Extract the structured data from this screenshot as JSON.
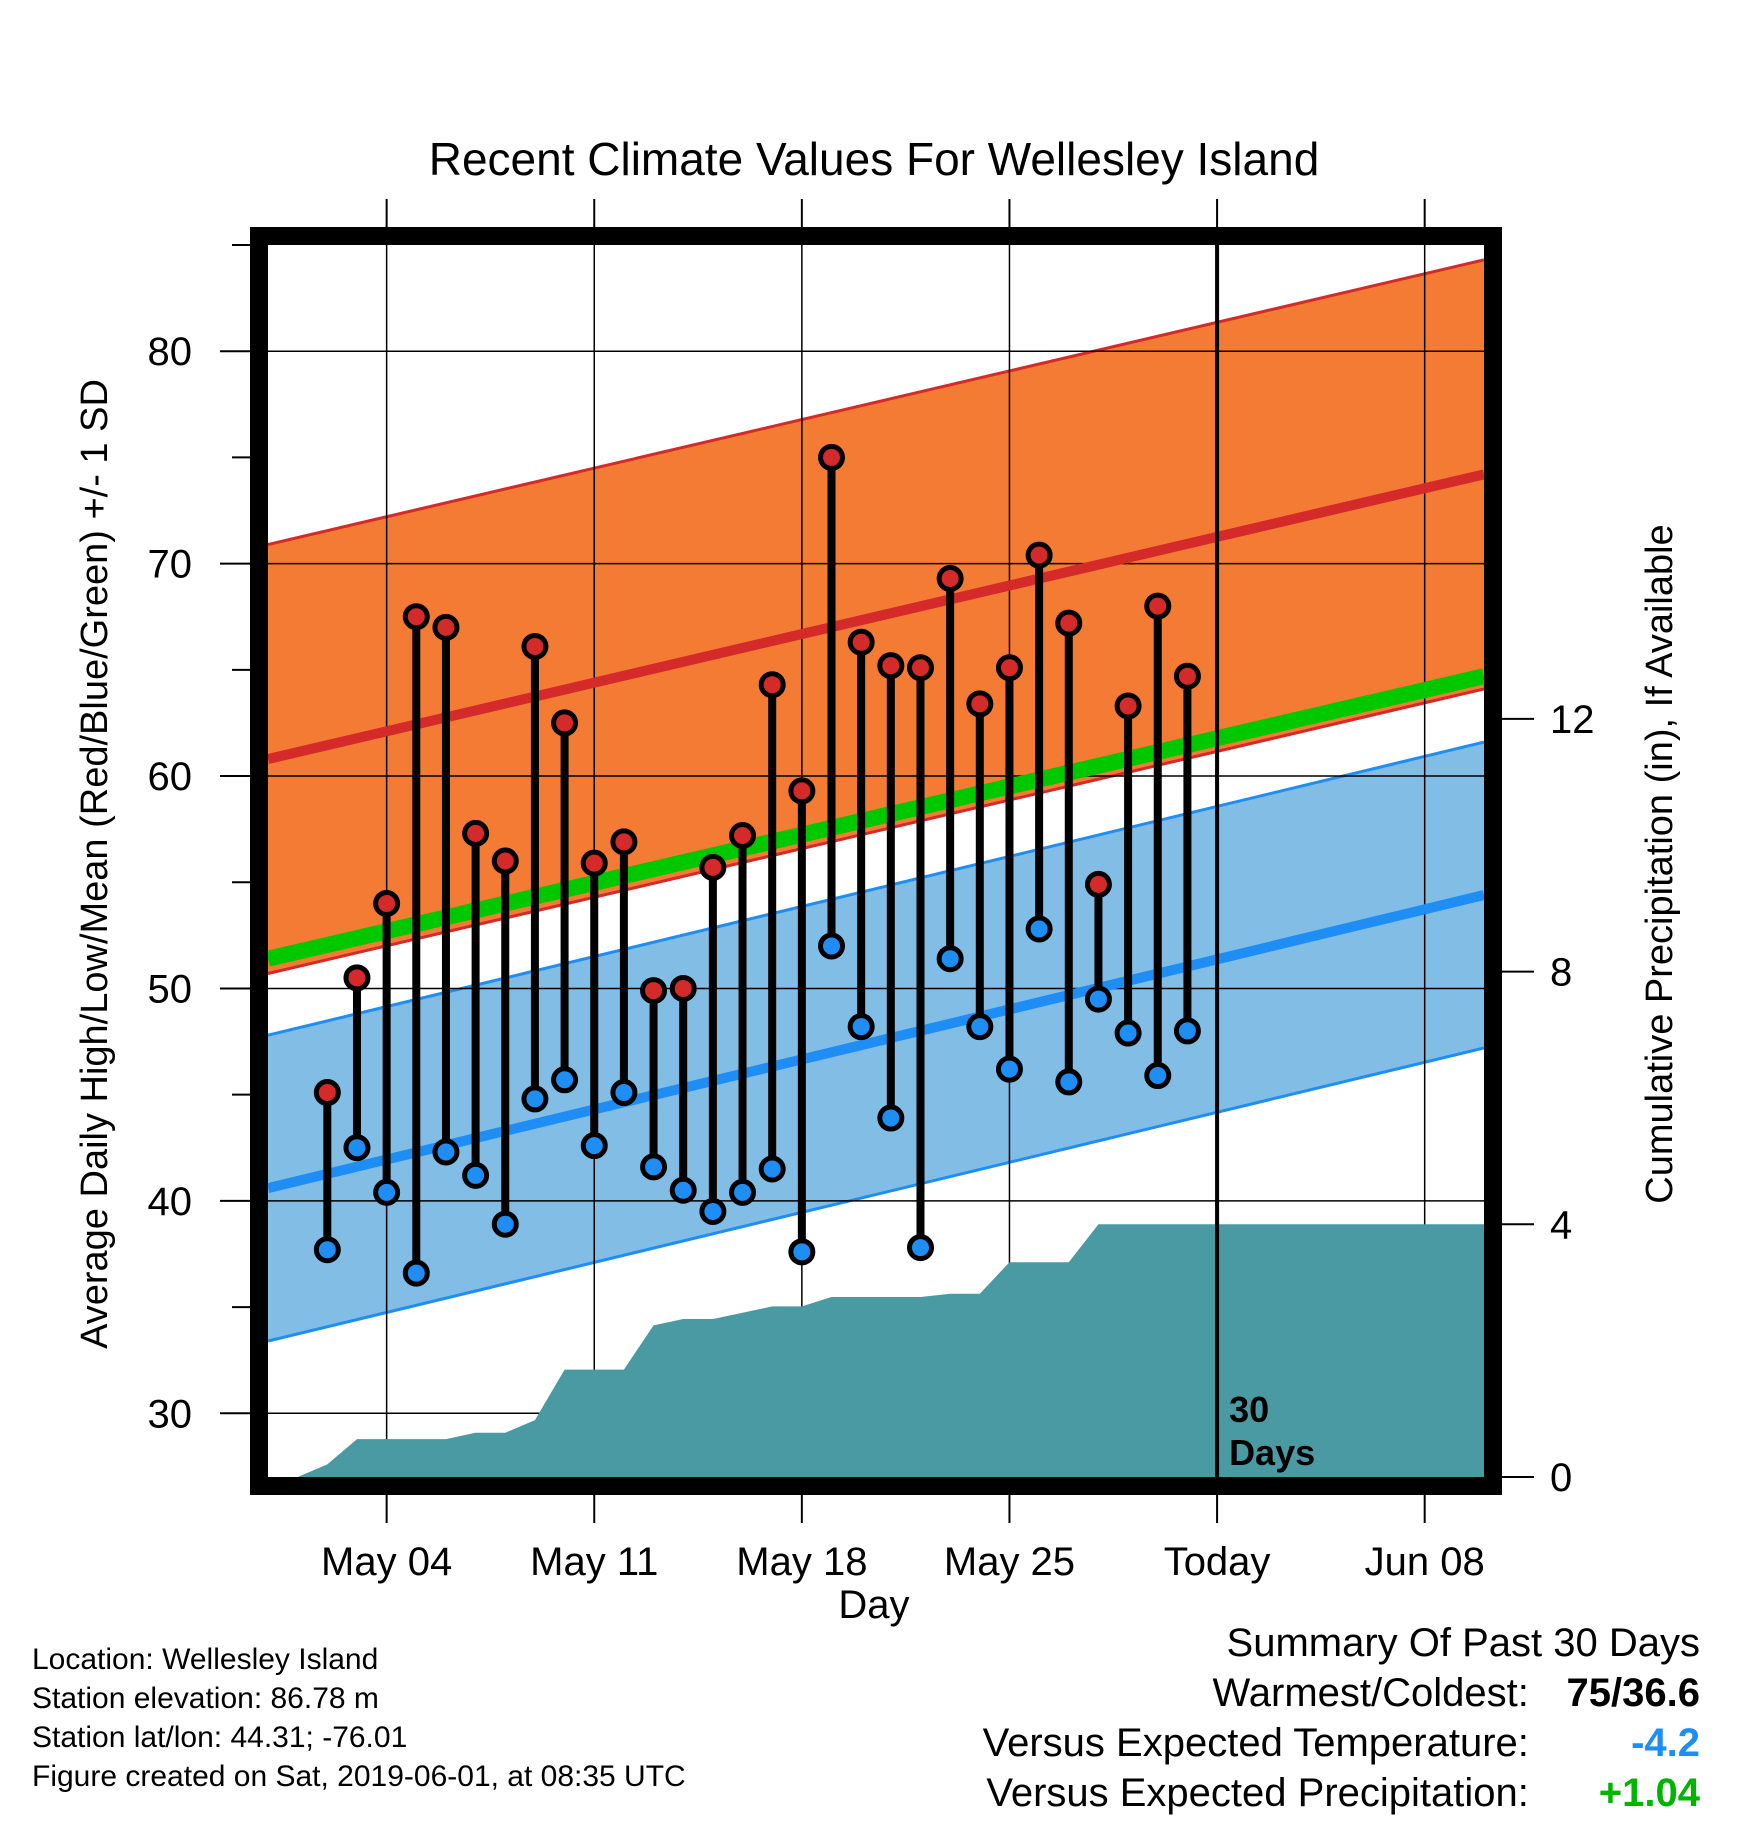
{
  "chart_data": {
    "type": "line",
    "title": "Recent Climate Values For Wellesley Island",
    "xlabel": "Day",
    "ylabel": "Average Daily High/Low/Mean (Red/Blue/Green) +/- 1 SD",
    "y2label": "Cumulative Precipitation (in), If Available",
    "ylim": [
      27,
      85
    ],
    "y2lim": [
      0,
      19.5
    ],
    "y_ticks": [
      30,
      40,
      50,
      60,
      70,
      80
    ],
    "y2_ticks": [
      0,
      4,
      8,
      12
    ],
    "x_range": [
      "2019-04-30",
      "2019-06-10"
    ],
    "x_ticks": [
      {
        "date": "2019-05-04",
        "label": "May 04"
      },
      {
        "date": "2019-05-11",
        "label": "May 11"
      },
      {
        "date": "2019-05-18",
        "label": "May 18"
      },
      {
        "date": "2019-05-25",
        "label": "May 25"
      },
      {
        "date": "2019-06-01",
        "label": "Today"
      },
      {
        "date": "2019-06-08",
        "label": "Jun 08"
      }
    ],
    "grid": true,
    "today_marker": {
      "date": "2019-06-01",
      "label_line1": "30",
      "label_line2": "Days"
    },
    "normals": {
      "start": "2019-04-30",
      "end": "2019-06-10",
      "high_mean": [
        60.8,
        74.2
      ],
      "high_sd": 10.1,
      "low_mean": [
        40.6,
        54.4
      ],
      "low_sd": 7.2,
      "mean": [
        51.4,
        64.7
      ]
    },
    "daily": [
      {
        "date": "2019-05-02",
        "high": 45.1,
        "low": 37.7
      },
      {
        "date": "2019-05-03",
        "high": 50.5,
        "low": 42.5
      },
      {
        "date": "2019-05-04",
        "high": 54.0,
        "low": 40.4
      },
      {
        "date": "2019-05-05",
        "high": 67.5,
        "low": 36.6
      },
      {
        "date": "2019-05-06",
        "high": 67.0,
        "low": 42.3
      },
      {
        "date": "2019-05-07",
        "high": 57.3,
        "low": 41.2
      },
      {
        "date": "2019-05-08",
        "high": 56.0,
        "low": 38.9
      },
      {
        "date": "2019-05-09",
        "high": 66.1,
        "low": 44.8
      },
      {
        "date": "2019-05-10",
        "high": 62.5,
        "low": 45.7
      },
      {
        "date": "2019-05-11",
        "high": 55.9,
        "low": 42.6
      },
      {
        "date": "2019-05-12",
        "high": 56.9,
        "low": 45.1
      },
      {
        "date": "2019-05-13",
        "high": 49.9,
        "low": 41.6
      },
      {
        "date": "2019-05-14",
        "high": 50.0,
        "low": 40.5
      },
      {
        "date": "2019-05-15",
        "high": 55.7,
        "low": 39.5
      },
      {
        "date": "2019-05-16",
        "high": 57.2,
        "low": 40.4
      },
      {
        "date": "2019-05-17",
        "high": 64.3,
        "low": 41.5
      },
      {
        "date": "2019-05-18",
        "high": 59.3,
        "low": 37.6
      },
      {
        "date": "2019-05-19",
        "high": 75.0,
        "low": 52.0
      },
      {
        "date": "2019-05-20",
        "high": 66.3,
        "low": 48.2
      },
      {
        "date": "2019-05-21",
        "high": 65.2,
        "low": 43.9
      },
      {
        "date": "2019-05-22",
        "high": 65.1,
        "low": 37.8
      },
      {
        "date": "2019-05-23",
        "high": 69.3,
        "low": 51.4
      },
      {
        "date": "2019-05-24",
        "high": 63.4,
        "low": 48.2
      },
      {
        "date": "2019-05-25",
        "high": 65.1,
        "low": 46.2
      },
      {
        "date": "2019-05-26",
        "high": 70.4,
        "low": 52.8
      },
      {
        "date": "2019-05-27",
        "high": 67.2,
        "low": 45.6
      },
      {
        "date": "2019-05-28",
        "high": 54.9,
        "low": 49.5
      },
      {
        "date": "2019-05-29",
        "high": 63.3,
        "low": 47.9
      },
      {
        "date": "2019-05-30",
        "high": 68.0,
        "low": 45.9
      },
      {
        "date": "2019-05-31",
        "high": 64.7,
        "low": 48.0
      }
    ],
    "precip_cumulative": [
      {
        "date": "2019-05-01",
        "value": 0.0
      },
      {
        "date": "2019-05-02",
        "value": 0.2
      },
      {
        "date": "2019-05-03",
        "value": 0.6
      },
      {
        "date": "2019-05-04",
        "value": 0.6
      },
      {
        "date": "2019-05-05",
        "value": 0.6
      },
      {
        "date": "2019-05-06",
        "value": 0.6
      },
      {
        "date": "2019-05-07",
        "value": 0.7
      },
      {
        "date": "2019-05-08",
        "value": 0.7
      },
      {
        "date": "2019-05-09",
        "value": 0.9
      },
      {
        "date": "2019-05-10",
        "value": 1.7
      },
      {
        "date": "2019-05-11",
        "value": 1.7
      },
      {
        "date": "2019-05-12",
        "value": 1.7
      },
      {
        "date": "2019-05-13",
        "value": 2.4
      },
      {
        "date": "2019-05-14",
        "value": 2.5
      },
      {
        "date": "2019-05-15",
        "value": 2.5
      },
      {
        "date": "2019-05-16",
        "value": 2.6
      },
      {
        "date": "2019-05-17",
        "value": 2.7
      },
      {
        "date": "2019-05-18",
        "value": 2.7
      },
      {
        "date": "2019-05-19",
        "value": 2.85
      },
      {
        "date": "2019-05-20",
        "value": 2.85
      },
      {
        "date": "2019-05-21",
        "value": 2.85
      },
      {
        "date": "2019-05-22",
        "value": 2.85
      },
      {
        "date": "2019-05-23",
        "value": 2.9
      },
      {
        "date": "2019-05-24",
        "value": 2.9
      },
      {
        "date": "2019-05-25",
        "value": 3.4
      },
      {
        "date": "2019-05-26",
        "value": 3.4
      },
      {
        "date": "2019-05-27",
        "value": 3.4
      },
      {
        "date": "2019-05-28",
        "value": 4.0
      },
      {
        "date": "2019-05-29",
        "value": 4.0
      },
      {
        "date": "2019-05-30",
        "value": 4.0
      },
      {
        "date": "2019-05-31",
        "value": 4.0
      },
      {
        "date": "2019-06-10",
        "value": 4.0
      }
    ],
    "colors": {
      "high_band": "#f47b33",
      "high_line": "#d42a2a",
      "high_band_edge": "#d42a2a",
      "low_band": "#82bde6",
      "low_line": "#1e8ef5",
      "low_band_edge": "#1e8ef5",
      "mean_line": "#00c800",
      "precip": "#4a9aa3",
      "high_point": "#d42a2a",
      "low_point": "#1e8ef5"
    }
  },
  "info": {
    "location": "Location: Wellesley Island",
    "elevation": "Station elevation: 86.78 m",
    "latlon": "Station lat/lon: 44.31; -76.01",
    "created": "Figure created on Sat, 2019-06-01, at 08:35 UTC"
  },
  "summary": {
    "heading": "Summary Of Past 30 Days",
    "warmest_label": "Warmest/Coldest:",
    "warmest_value": "75/36.6",
    "temp_label": "Versus Expected Temperature:",
    "temp_value": "-4.2",
    "temp_color": "#1e8ef5",
    "precip_label": "Versus Expected Precipitation:",
    "precip_value": "+1.04",
    "precip_color": "#00b400"
  }
}
